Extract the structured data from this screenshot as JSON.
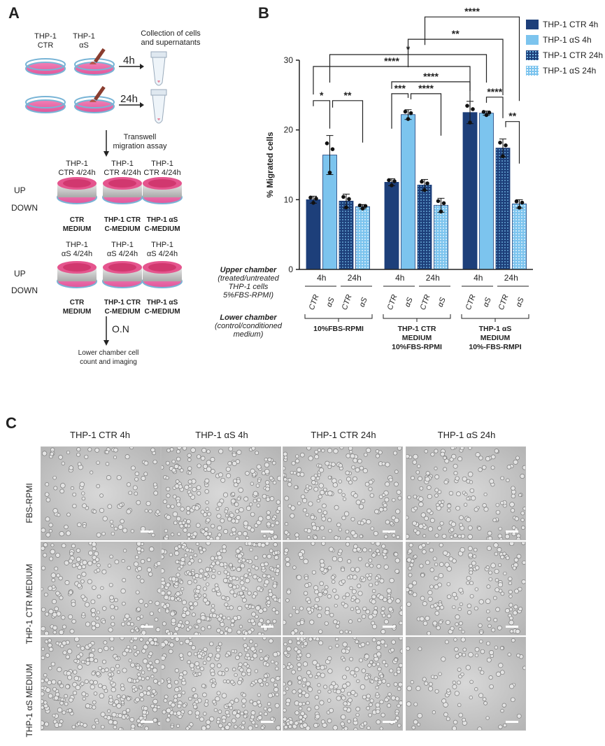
{
  "panels": {
    "a": "A",
    "b": "B",
    "c": "C"
  },
  "panel_a": {
    "thp_ctr": "THP-1\nCTR",
    "thp_as": "THP-1\nαS",
    "collection": "Collection of cells\nand supernatants",
    "t4": "4h",
    "t24": "24h",
    "transwell": "Transwell\nmigration assay",
    "up": "UP",
    "down": "DOWN",
    "row1_headers": [
      "THP-1\nCTR 4/24h",
      "THP-1\nCTR 4/24h",
      "THP-1\nCTR 4/24h"
    ],
    "row2_headers": [
      "THP-1\nαS 4/24h",
      "THP-1\nαS 4/24h",
      "THP-1\nαS 4/24h"
    ],
    "medium_labels": [
      "CTR\nMEDIUM",
      "THP-1 CTR\nC-MEDIUM",
      "THP-1 αS\nC-MEDIUM"
    ],
    "on": "O.N",
    "final": "Lower chamber cell\ncount and imaging"
  },
  "legend": [
    "THP-1 CTR 4h",
    "THP-1 αS 4h",
    "THP-1 CTR 24h",
    "THP-1 αS 24h"
  ],
  "chart_data": {
    "type": "bar",
    "ylabel": "% Migrated cells",
    "ylim": [
      0,
      30
    ],
    "yticks": [
      0,
      10,
      20,
      30
    ],
    "groups": [
      "10%FBS-RPMI",
      "THP-1 CTR\nMEDIUM\n10%FBS-RPMI",
      "THP-1 αS\nMEDIUM\n10%-FBS-RMPI"
    ],
    "time_labels": [
      "4h",
      "24h"
    ],
    "condition_labels": [
      "CTR",
      "αS",
      "CTR",
      "αS"
    ],
    "upper_chamber_label": "Upper chamber",
    "upper_chamber_note": "(treated/untreated\nTHP-1 cells\n5%FBS-RPMI)",
    "lower_chamber_label": "Lower chamber",
    "lower_chamber_note": "(control/conditioned\nmedium)",
    "series": [
      {
        "name": "THP-1 CTR 4h",
        "values": [
          10.0,
          12.5,
          22.5
        ],
        "err": [
          0.5,
          0.5,
          1.6
        ],
        "color": "#1d3f7a"
      },
      {
        "name": "THP-1 αS 4h",
        "values": [
          16.4,
          22.2,
          22.4
        ],
        "err": [
          2.8,
          0.7,
          0.3
        ],
        "color": "#7cc4ee"
      },
      {
        "name": "THP-1 CTR 24h",
        "values": [
          9.8,
          12.1,
          17.4
        ],
        "err": [
          1.0,
          0.8,
          1.3
        ],
        "color": "#1d3f7a"
      },
      {
        "name": "THP-1 αS 24h",
        "values": [
          9.0,
          9.2,
          9.4
        ],
        "err": [
          0.3,
          1.0,
          0.6
        ],
        "color": "#7cc4ee"
      }
    ],
    "significance": [
      "*",
      "**",
      "***",
      "****",
      "****",
      "****",
      "*",
      "**",
      "****",
      "****",
      "**"
    ]
  },
  "panel_c": {
    "columns": [
      "THP-1 CTR 4h",
      "THP-1 αS 4h",
      "THP-1 CTR 24h",
      "THP-1 αS 24h"
    ],
    "rows": [
      "FBS-RPMI",
      "THP-1 CTR MEDIUM",
      "THP-1 αS MEDIUM"
    ]
  }
}
